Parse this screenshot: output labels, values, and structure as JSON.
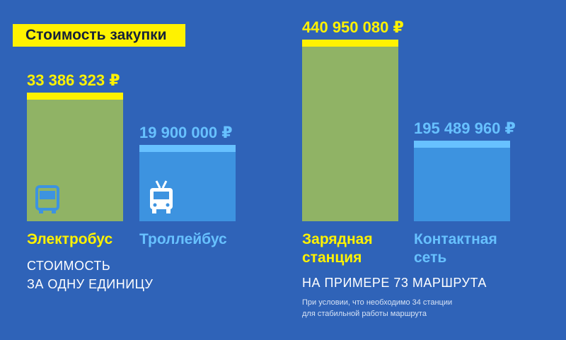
{
  "title": "Стоимость закупки",
  "colors": {
    "background": "#2f63b8",
    "green_bar": "#90b365",
    "blue_bar": "#3d93e0",
    "yellow": "#fff200",
    "light_blue": "#67c1ff"
  },
  "chart_data": {
    "type": "bar",
    "groups": [
      {
        "caption_lines": [
          "СТОИМОСТЬ",
          "ЗА ОДНУ ЕДИНИЦУ"
        ],
        "note_lines": [],
        "bars": [
          {
            "label_lines": [
              "Электробус"
            ],
            "value": 33386323,
            "value_label": "33 386 323 ₽",
            "color": "green",
            "icon": "bus-icon"
          },
          {
            "label_lines": [
              "Троллейбус"
            ],
            "value": 19900000,
            "value_label": "19 900 000 ₽",
            "color": "blue",
            "icon": "trolleybus-icon"
          }
        ]
      },
      {
        "caption_lines": [
          "НА ПРИМЕРЕ 73 МАРШРУТА"
        ],
        "note_lines": [
          "При условии, что необходимо 34 станции",
          "для стабильной работы маршрута"
        ],
        "bars": [
          {
            "label_lines": [
              "Зарядная",
              "станция"
            ],
            "value": 440950080,
            "value_label": "440 950 080 ₽",
            "color": "green",
            "icon": ""
          },
          {
            "label_lines": [
              "Контактная",
              "сеть"
            ],
            "value": 195489960,
            "value_label": "195 489 960 ₽",
            "color": "blue",
            "icon": ""
          }
        ]
      }
    ]
  }
}
